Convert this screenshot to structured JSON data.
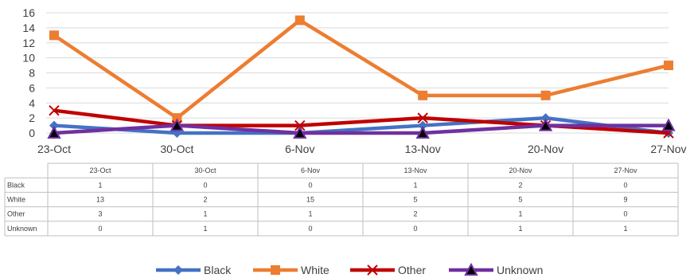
{
  "chart_data": {
    "type": "line",
    "title": "",
    "xlabel": "",
    "ylabel": "",
    "categories": [
      "23-Oct",
      "30-Oct",
      "6-Nov",
      "13-Nov",
      "20-Nov",
      "27-Nov"
    ],
    "yticks": [
      "0",
      "2",
      "4",
      "6",
      "8",
      "10",
      "12",
      "14",
      "16"
    ],
    "ylim": [
      0,
      16
    ],
    "grid": true,
    "legend": "bottom",
    "data_table": true,
    "series": [
      {
        "name": "Black",
        "values": [
          1,
          0,
          0,
          1,
          2,
          0
        ],
        "color": "#4472C4",
        "marker": "diamond"
      },
      {
        "name": "White",
        "values": [
          13,
          2,
          15,
          5,
          5,
          9
        ],
        "color": "#ED7D31",
        "marker": "square"
      },
      {
        "name": "Other",
        "values": [
          3,
          1,
          1,
          2,
          1,
          0
        ],
        "color": "#C00000",
        "marker": "x"
      },
      {
        "name": "Unknown",
        "values": [
          0,
          1,
          0,
          0,
          1,
          1
        ],
        "color": "#7030A0",
        "marker": "triangle"
      }
    ]
  }
}
